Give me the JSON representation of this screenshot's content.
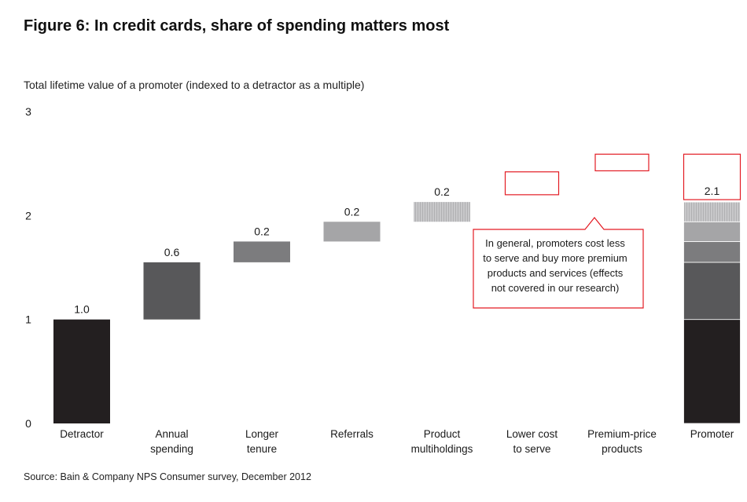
{
  "figure_title": "Figure 6: In credit cards, share of spending matters most",
  "source": "Source: Bain & Company NPS Consumer survey, December 2012",
  "chart_data": {
    "type": "bar",
    "subtype": "waterfall",
    "ylabel": "Total lifetime value of a promoter (indexed to a detractor as a multiple)",
    "ylim": [
      0,
      3
    ],
    "yticks": [
      "0",
      "1",
      "2",
      "3"
    ],
    "grid": false,
    "categories": [
      [
        "Detractor"
      ],
      [
        "Annual",
        "spending"
      ],
      [
        "Longer",
        "tenure"
      ],
      [
        "Referrals"
      ],
      [
        "Product",
        "multiholdings"
      ],
      [
        "Lower cost",
        "to serve"
      ],
      [
        "Premium-price",
        "products"
      ],
      [
        "Promoter"
      ]
    ],
    "bars": [
      {
        "base": 0.0,
        "value": 1.0,
        "label": "1.0",
        "color": "#231f20"
      },
      {
        "base": 1.0,
        "value": 0.55,
        "label": "0.6",
        "color": "#58585a"
      },
      {
        "base": 1.55,
        "value": 0.2,
        "label": "0.2",
        "color": "#7c7c7e"
      },
      {
        "base": 1.75,
        "value": 0.19,
        "label": "0.2",
        "color": "#a5a5a7"
      },
      {
        "base": 1.94,
        "value": 0.19,
        "label": "0.2",
        "color": "#c8c8ca",
        "hatched": true
      },
      {
        "base": 2.2,
        "value": 0.22,
        "label": "",
        "outline": "#e31b23",
        "empty": true
      },
      {
        "base": 2.43,
        "value": 0.16,
        "label": "",
        "outline": "#e31b23",
        "empty": true
      }
    ],
    "total": {
      "segments": [
        {
          "value": 1.0,
          "color": "#231f20"
        },
        {
          "value": 0.55,
          "color": "#58585a"
        },
        {
          "value": 0.2,
          "color": "#7c7c7e"
        },
        {
          "value": 0.19,
          "color": "#a5a5a7"
        },
        {
          "value": 0.19,
          "color": "#c8c8ca",
          "hatched": true
        }
      ],
      "label": "2.1",
      "outline_top": 2.59,
      "outline_color": "#e31b23"
    },
    "annotation": {
      "lines": [
        "In general, promoters cost less",
        "to serve and buy more premium",
        "products and services (effects",
        "not covered in our research)"
      ],
      "border_color": "#e31b23"
    }
  }
}
